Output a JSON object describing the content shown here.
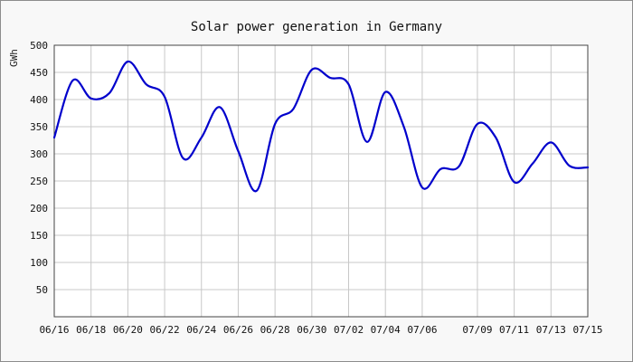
{
  "chart_data": {
    "type": "line",
    "title": "Solar power generation in Germany",
    "xlabel": "",
    "ylabel": "GWh",
    "ylim": [
      0,
      500
    ],
    "yticks": [
      50,
      100,
      150,
      200,
      250,
      300,
      350,
      400,
      450,
      500
    ],
    "xlim": [
      "2023-06-16",
      "2023-07-15"
    ],
    "xticks": [
      "06/16",
      "06/18",
      "06/20",
      "06/22",
      "06/24",
      "06/26",
      "06/28",
      "06/30",
      "07/02",
      "07/04",
      "07/06",
      "07/09",
      "07/11",
      "07/13",
      "07/15"
    ],
    "grid": true,
    "series": [
      {
        "color": "#0000cc",
        "x": [
          "2023-06-16",
          "2023-06-17",
          "2023-06-18",
          "2023-06-19",
          "2023-06-20",
          "2023-06-21",
          "2023-06-22",
          "2023-06-23",
          "2023-06-24",
          "2023-06-25",
          "2023-06-26",
          "2023-06-27",
          "2023-06-28",
          "2023-06-29",
          "2023-06-30",
          "2023-07-01",
          "2023-07-02",
          "2023-07-03",
          "2023-07-04",
          "2023-07-05",
          "2023-07-06",
          "2023-07-07",
          "2023-07-08",
          "2023-07-09",
          "2023-07-10",
          "2023-07-11",
          "2023-07-12",
          "2023-07-13",
          "2023-07-14",
          "2023-07-15"
        ],
        "values": [
          330,
          435,
          402,
          412,
          470,
          428,
          405,
          292,
          330,
          386,
          305,
          232,
          355,
          383,
          455,
          440,
          428,
          322,
          414,
          350,
          238,
          272,
          277,
          355,
          330,
          248,
          282,
          321,
          278,
          275
        ]
      }
    ]
  }
}
